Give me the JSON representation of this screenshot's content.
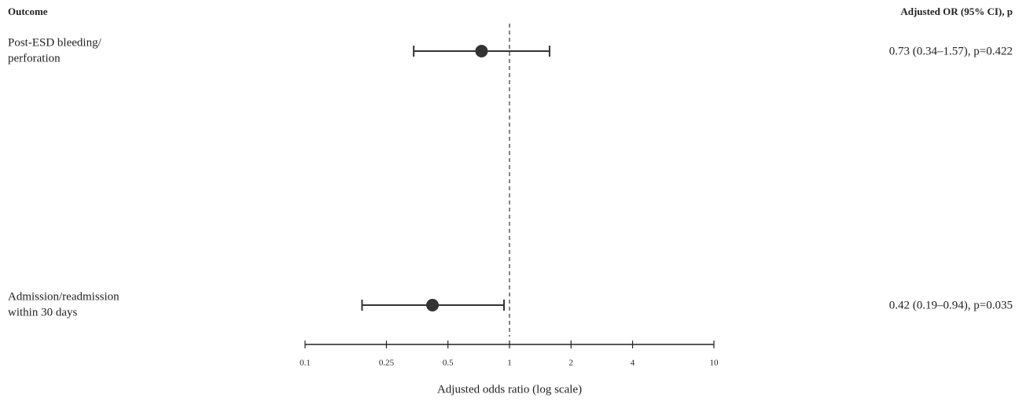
{
  "chart_data": {
    "type": "forest",
    "label_header": "Outcome",
    "value_header": "Adjusted OR (95% CI), p",
    "categories": [
      [
        "Post-ESD bleeding/",
        "perforation"
      ],
      [
        "Admission/readmission",
        "within 30 days"
      ]
    ],
    "values": [
      0.73,
      0.42
    ],
    "lower": [
      0.34,
      0.19
    ],
    "upper": [
      1.57,
      0.94
    ],
    "value_labels": [
      "0.73 (0.34–1.57), p=0.422",
      "0.42 (0.19–0.94), p=0.035"
    ],
    "color": "#333333",
    "xscale": "log",
    "xlim": [
      0.1,
      10
    ],
    "xticks": [
      0.1,
      0.25,
      0.5,
      1,
      2,
      4,
      10
    ],
    "reference_line": 1,
    "xlabel": "Adjusted odds ratio (log scale)"
  }
}
